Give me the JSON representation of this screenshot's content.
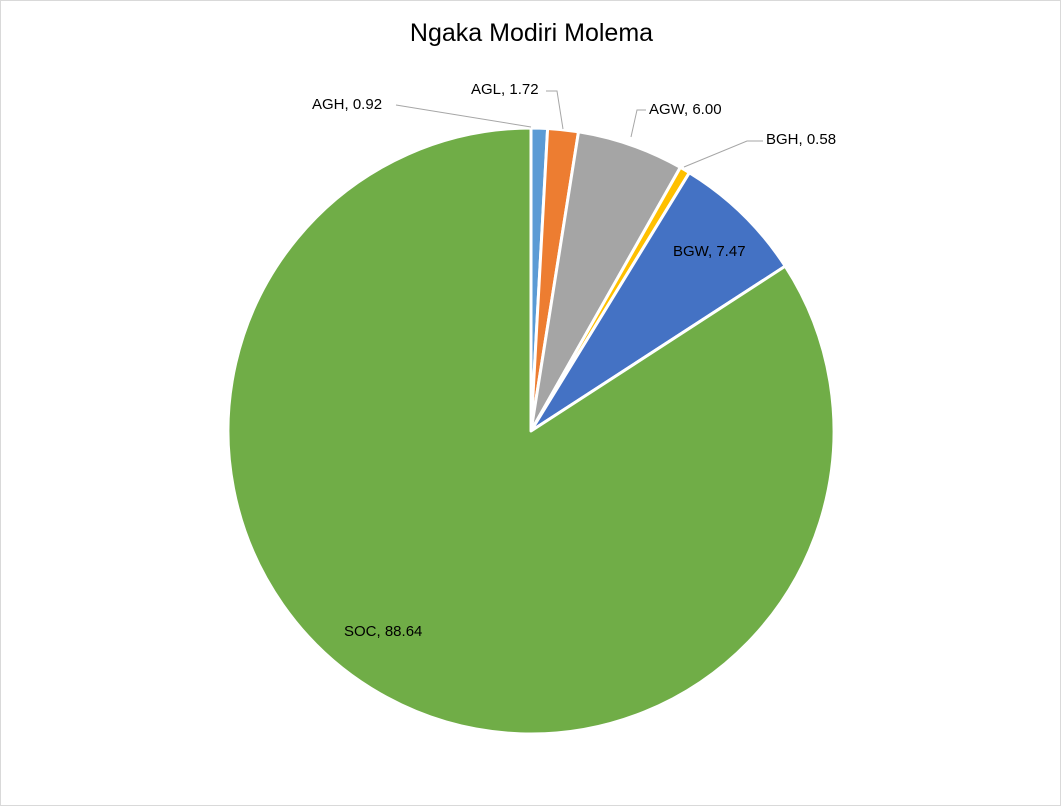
{
  "chart_data": {
    "type": "pie",
    "title": "Ngaka Modiri Molema",
    "slices": [
      {
        "label": "AGH",
        "value": 0.92,
        "display": "0.92",
        "color": "#5b9bd5"
      },
      {
        "label": "AGL",
        "value": 1.72,
        "display": "1.72",
        "color": "#ed7d31"
      },
      {
        "label": "AGW",
        "value": 6.0,
        "display": "6.00",
        "color": "#a5a5a5"
      },
      {
        "label": "BGH",
        "value": 0.58,
        "display": "0.58",
        "color": "#ffc000"
      },
      {
        "label": "BGW",
        "value": 7.47,
        "display": "7.47",
        "color": "#4472c4"
      },
      {
        "label": "SOC",
        "value": 88.64,
        "display": "88.64",
        "color": "#70ad47"
      }
    ]
  }
}
